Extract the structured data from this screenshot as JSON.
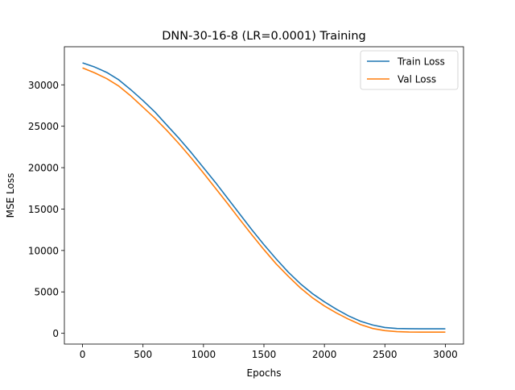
{
  "chart_data": {
    "type": "line",
    "title": "DNN-30-16-8 (LR=0.0001) Training",
    "xlabel": "Epochs",
    "ylabel": "MSE Loss",
    "xlim": [
      -150,
      3150
    ],
    "ylim": [
      -1300,
      34600
    ],
    "xticks": [
      0,
      500,
      1000,
      1500,
      2000,
      2500,
      3000
    ],
    "yticks": [
      0,
      5000,
      10000,
      15000,
      20000,
      25000,
      30000
    ],
    "grid": false,
    "legend": "upper right",
    "series": [
      {
        "name": "Train Loss",
        "color": "#1f77b4",
        "x": [
          0,
          100,
          200,
          300,
          400,
          500,
          600,
          700,
          800,
          900,
          1000,
          1100,
          1200,
          1300,
          1400,
          1500,
          1600,
          1700,
          1800,
          1900,
          2000,
          2100,
          2200,
          2300,
          2400,
          2500,
          2600,
          2700,
          2800,
          2900,
          3000
        ],
        "values": [
          32650,
          32150,
          31500,
          30600,
          29400,
          28100,
          26700,
          25100,
          23500,
          21800,
          20000,
          18200,
          16300,
          14400,
          12500,
          10700,
          9000,
          7400,
          6000,
          4800,
          3800,
          2900,
          2100,
          1450,
          1000,
          700,
          580,
          550,
          540,
          540,
          540
        ]
      },
      {
        "name": "Val Loss",
        "color": "#ff7f0e",
        "x": [
          0,
          100,
          200,
          300,
          400,
          500,
          600,
          700,
          800,
          900,
          1000,
          1100,
          1200,
          1300,
          1400,
          1500,
          1600,
          1700,
          1800,
          1900,
          2000,
          2100,
          2200,
          2300,
          2400,
          2500,
          2600,
          2700,
          2800,
          2900,
          3000
        ],
        "values": [
          32050,
          31450,
          30750,
          29850,
          28650,
          27300,
          25950,
          24450,
          22850,
          21150,
          19350,
          17500,
          15650,
          13750,
          11900,
          10100,
          8400,
          6900,
          5500,
          4300,
          3300,
          2450,
          1700,
          1050,
          580,
          320,
          200,
          150,
          140,
          140,
          140
        ]
      }
    ]
  }
}
